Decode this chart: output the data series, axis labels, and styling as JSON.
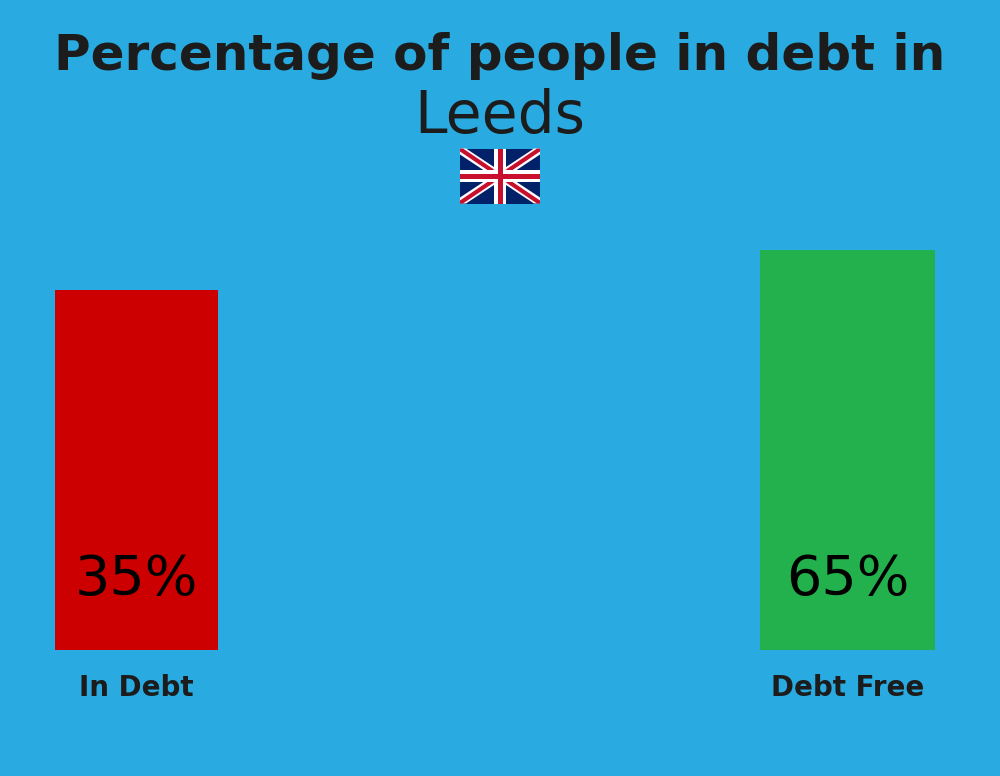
{
  "title_line1": "Percentage of people in debt in",
  "title_line2": "Leeds",
  "background_color": "#29ABE2",
  "bar_left_label": "In Debt",
  "bar_right_label": "Debt Free",
  "bar_left_color": "#CC0000",
  "bar_right_color": "#22B14C",
  "bar_left_pct": "35%",
  "bar_right_pct": "65%",
  "title_fontsize": 36,
  "subtitle_fontsize": 42,
  "bar_pct_fontsize": 40,
  "bar_label_fontsize": 20,
  "title_color": "#1C1C1C",
  "label_color": "#1C1C1C"
}
